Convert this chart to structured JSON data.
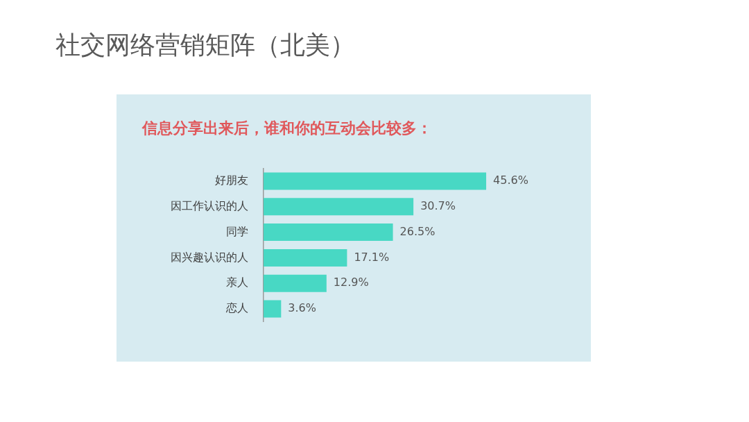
{
  "chart_data": {
    "type": "bar",
    "orientation": "horizontal",
    "title": "社交网络营销矩阵（北美）",
    "subtitle": "信息分享出来后，谁和你的互动会比较多：",
    "categories": [
      "好朋友",
      "因工作认识的人",
      "同学",
      "因兴趣认识的人",
      "亲人",
      "恋人"
    ],
    "values": [
      45.6,
      30.7,
      26.5,
      17.1,
      12.9,
      3.6
    ],
    "value_labels": [
      "45.6%",
      "30.7%",
      "26.5%",
      "17.1%",
      "12.9%",
      "3.6%"
    ],
    "color": "#48d8c4",
    "tick_labels": "y"
  }
}
